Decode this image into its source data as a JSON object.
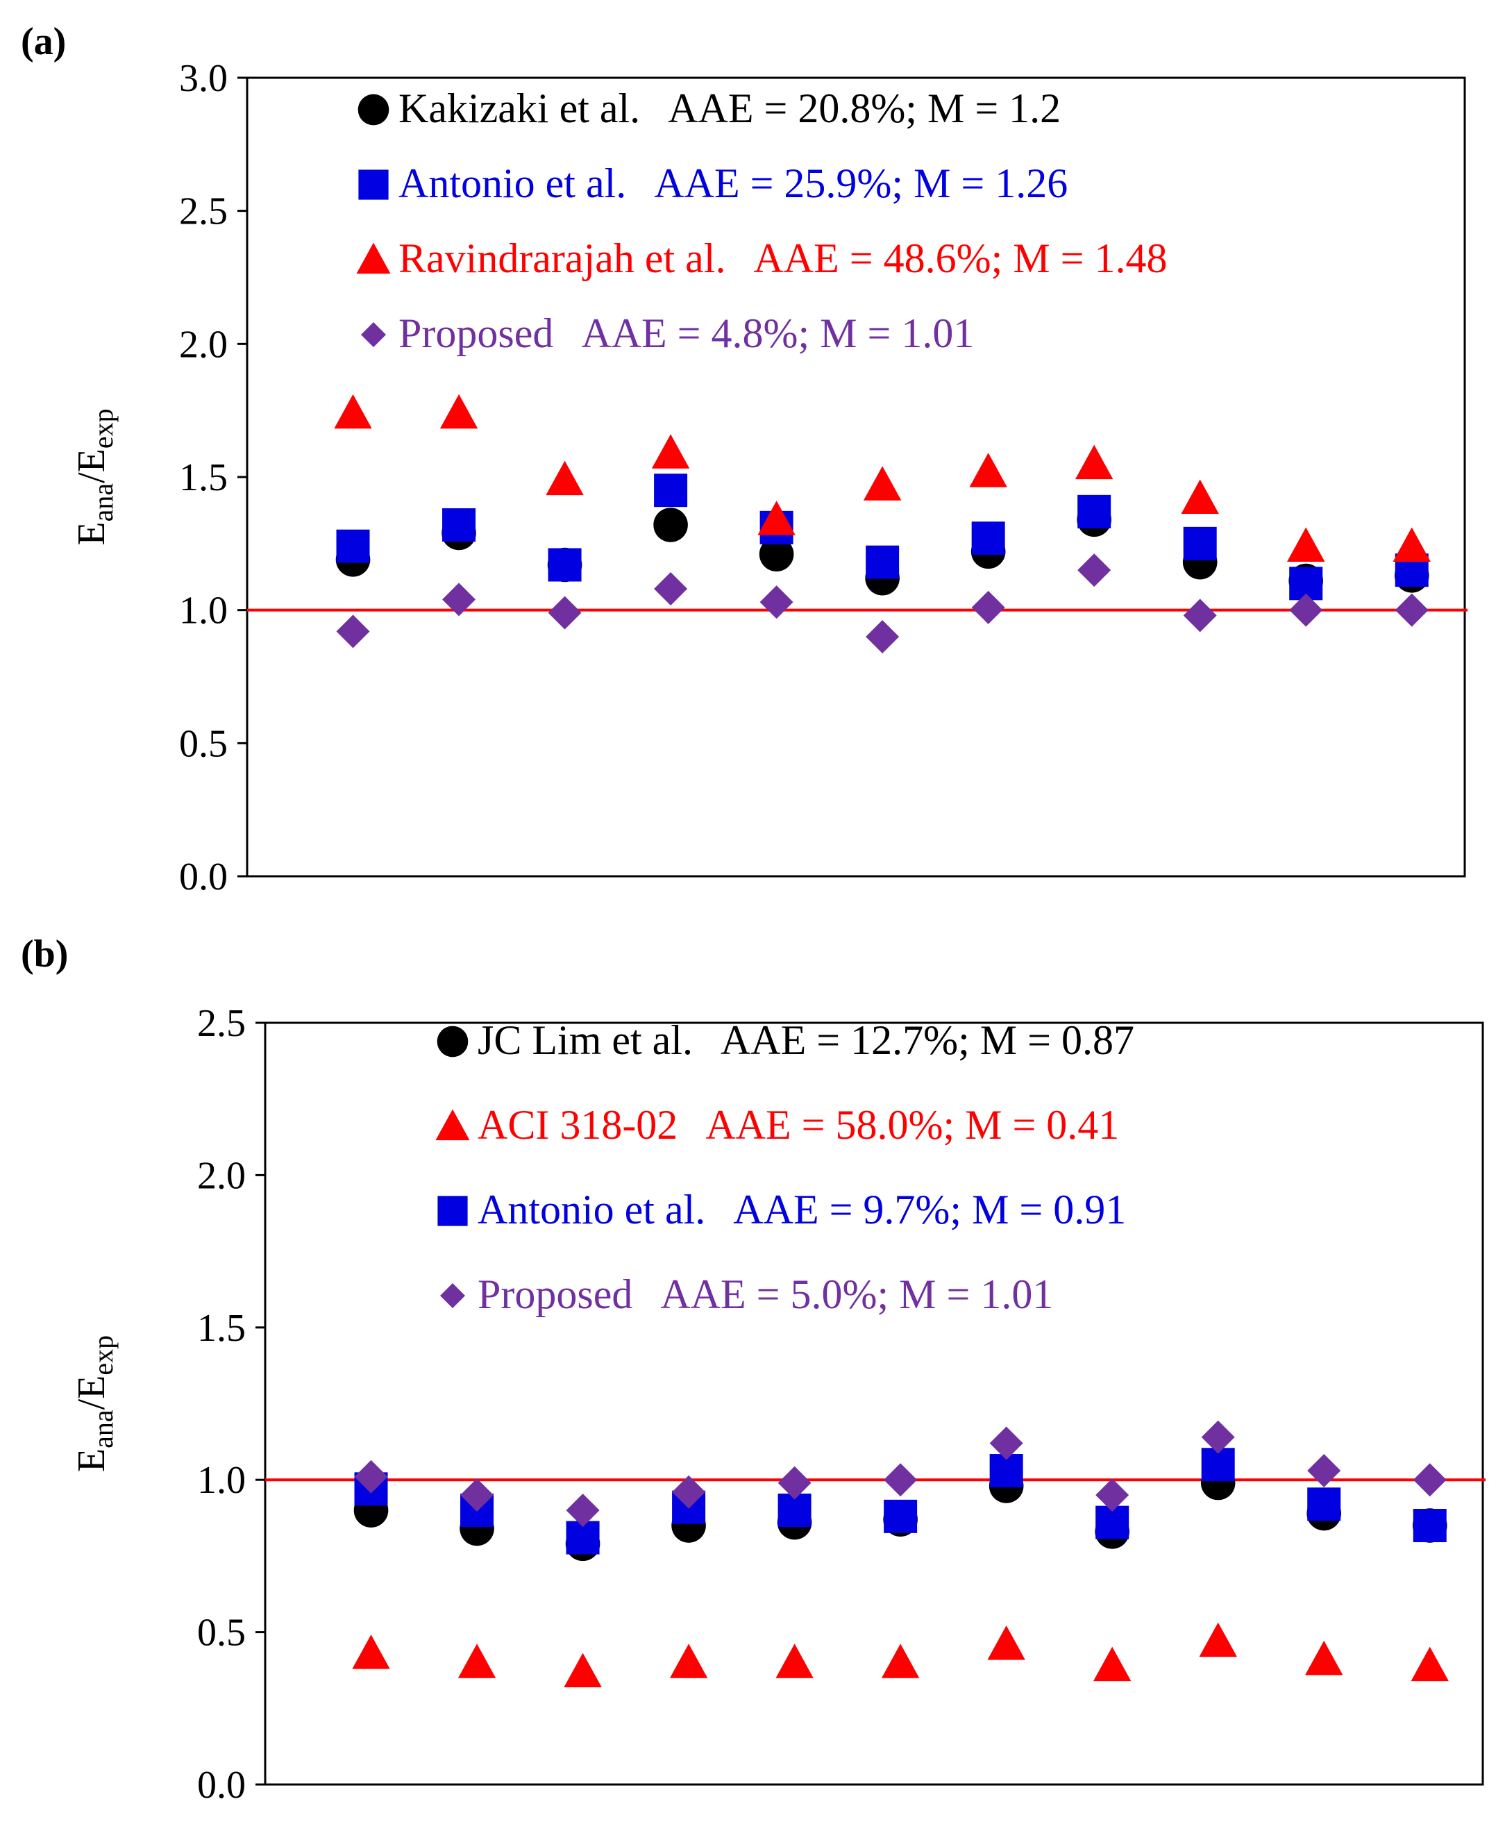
{
  "chart_data": [
    {
      "panel_label": "(a)",
      "type": "scatter",
      "ylabel": {
        "main1": "E",
        "sub1": "ana",
        "sep": "/E",
        "sub2": "exp"
      },
      "ylim": [
        0,
        3.0
      ],
      "yticks": [
        "0.0",
        "0.5",
        "1.0",
        "1.5",
        "2.0",
        "2.5",
        "3.0"
      ],
      "reference_line": 1.0,
      "x": [
        1,
        2,
        3,
        4,
        5,
        6,
        7,
        8,
        9,
        10,
        11
      ],
      "series": [
        {
          "name": "Kakizaki et al.",
          "metrics": "AAE = 20.8%; M = 1.2",
          "marker": "circle",
          "color": "#000000",
          "values": [
            1.19,
            1.29,
            1.17,
            1.32,
            1.21,
            1.12,
            1.22,
            1.34,
            1.18,
            1.11,
            1.13
          ]
        },
        {
          "name": "Antonio et al.",
          "metrics": "AAE = 25.9%; M = 1.26",
          "marker": "square",
          "color": "#0000e0",
          "values": [
            1.24,
            1.32,
            1.17,
            1.45,
            1.31,
            1.18,
            1.27,
            1.37,
            1.25,
            1.1,
            1.15
          ]
        },
        {
          "name": "Ravindrarajah et al.",
          "metrics": "AAE = 48.6%; M = 1.48",
          "marker": "triangle",
          "color": "#ff0000",
          "values": [
            1.74,
            1.74,
            1.49,
            1.59,
            1.34,
            1.47,
            1.52,
            1.55,
            1.42,
            1.24,
            1.24
          ]
        },
        {
          "name": "Proposed",
          "metrics": "AAE = 4.8%; M = 1.01",
          "marker": "diamond",
          "color": "#7030a0",
          "values": [
            0.92,
            1.04,
            0.99,
            1.08,
            1.03,
            0.9,
            1.01,
            1.15,
            0.98,
            1.0,
            1.0
          ]
        }
      ]
    },
    {
      "panel_label": "(b)",
      "type": "scatter",
      "ylabel": {
        "main1": "E",
        "sub1": "ana",
        "sep": "/E",
        "sub2": "exp"
      },
      "ylim": [
        0,
        2.5
      ],
      "yticks": [
        "0.0",
        "0.5",
        "1.0",
        "1.5",
        "2.0",
        "2.5"
      ],
      "reference_line": 1.0,
      "x": [
        1,
        2,
        3,
        4,
        5,
        6,
        7,
        8,
        9,
        10,
        11
      ],
      "series": [
        {
          "name": "JC Lim et al.",
          "metrics": "AAE = 12.7%; M = 0.87",
          "marker": "circle",
          "color": "#000000",
          "values": [
            0.9,
            0.84,
            0.79,
            0.85,
            0.86,
            0.87,
            0.98,
            0.83,
            0.99,
            0.89,
            0.85
          ]
        },
        {
          "name": "ACI 318-02",
          "metrics": "AAE = 58.0%; M = 0.41",
          "marker": "triangle",
          "color": "#ff0000",
          "values": [
            0.43,
            0.4,
            0.37,
            0.4,
            0.4,
            0.4,
            0.46,
            0.39,
            0.47,
            0.41,
            0.39
          ]
        },
        {
          "name": "Antonio et al.",
          "metrics": "AAE = 9.7%; M = 0.91",
          "marker": "square",
          "color": "#0000e0",
          "values": [
            0.97,
            0.9,
            0.81,
            0.91,
            0.9,
            0.88,
            1.03,
            0.86,
            1.05,
            0.92,
            0.85
          ]
        },
        {
          "name": "Proposed",
          "metrics": "AAE = 5.0%; M = 1.01",
          "marker": "diamond",
          "color": "#7030a0",
          "values": [
            1.01,
            0.95,
            0.9,
            0.96,
            0.99,
            1.0,
            1.12,
            0.95,
            1.14,
            1.03,
            1.0
          ]
        }
      ]
    }
  ]
}
